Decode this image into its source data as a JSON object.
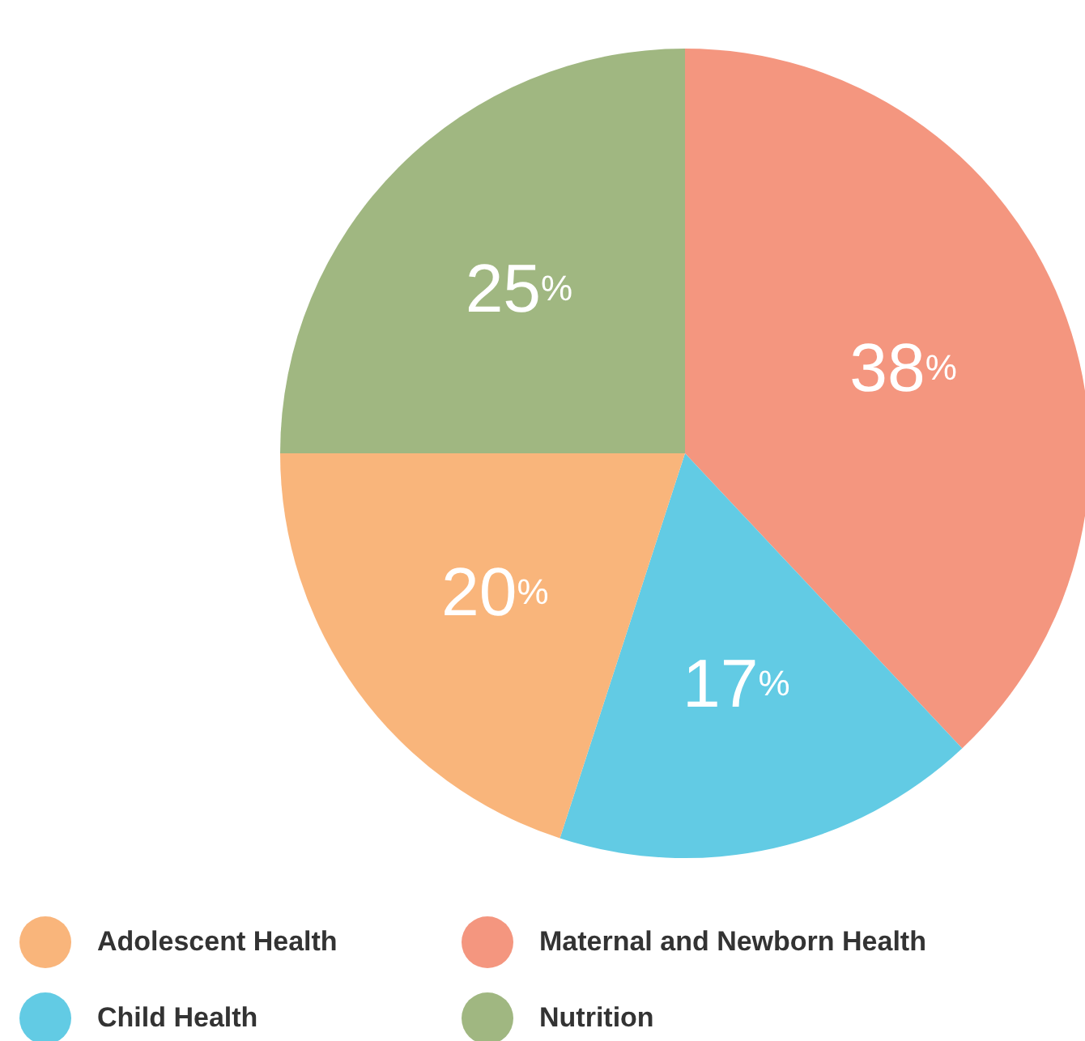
{
  "chart_data": {
    "type": "pie",
    "categories": [
      "Maternal and Newborn Health",
      "Child Health",
      "Adolescent Health",
      "Nutrition"
    ],
    "values": [
      38,
      17,
      20,
      25
    ],
    "value_labels": [
      "38%",
      "17%",
      "20%",
      "25%"
    ],
    "colors": [
      "#f4967f",
      "#62cbe4",
      "#f9b57b",
      "#a0b781"
    ],
    "legend": "bottom"
  }
}
